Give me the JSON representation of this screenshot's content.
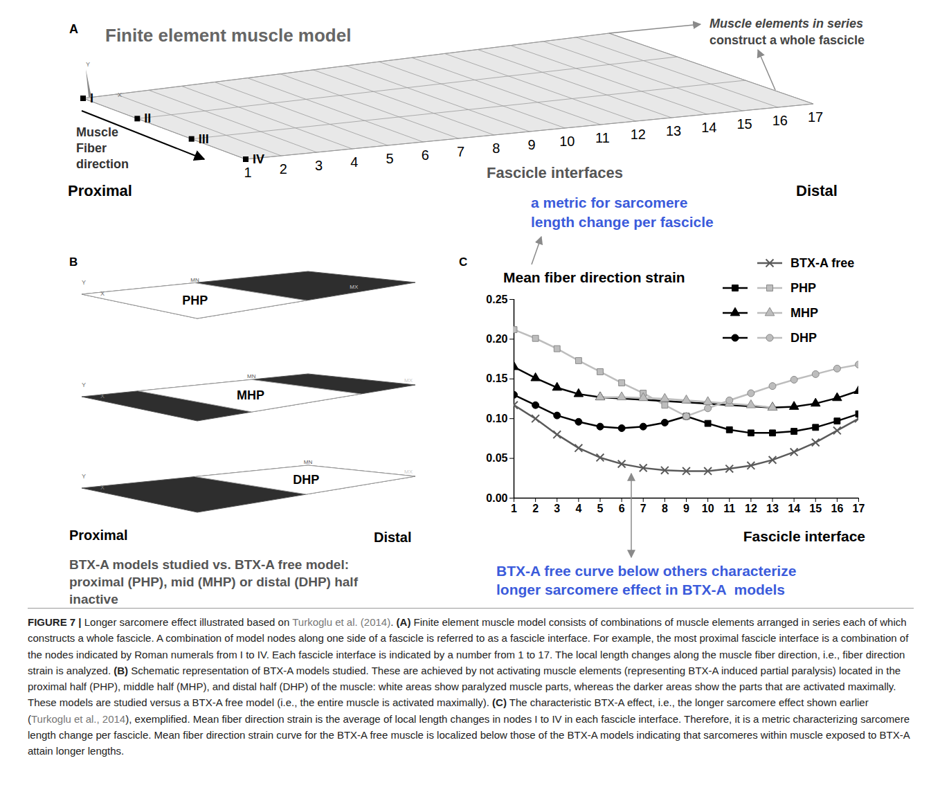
{
  "panel_a": {
    "letter": "A",
    "title": "Finite element muscle model",
    "annotation": [
      "Muscle elements in series",
      "construct a whole fascicle"
    ],
    "axis_marks": [
      "Y",
      "X"
    ],
    "nodes": [
      "I",
      "II",
      "III",
      "IV"
    ],
    "direction_label": "Muscle Fiber direction",
    "interfaces": [
      1,
      2,
      3,
      4,
      5,
      6,
      7,
      8,
      9,
      10,
      11,
      12,
      13,
      14,
      15,
      16,
      17
    ],
    "interfaces_label": "Fascicle interfaces",
    "proximal": "Proximal",
    "distal": "Distal"
  },
  "panel_b": {
    "letter": "B",
    "models": [
      {
        "name": "PHP",
        "inactive_half": "proximal"
      },
      {
        "name": "MHP",
        "inactive_half": "mid"
      },
      {
        "name": "DHP",
        "inactive_half": "distal"
      }
    ],
    "axis_marks": [
      "Y",
      "X"
    ],
    "extrema_marks": [
      "MN",
      "MX"
    ],
    "proximal": "Proximal",
    "distal": "Distal",
    "caption": "BTX-A models studied vs. BTX-A free model: proximal (PHP), mid (MHP) or distal (DHP) half inactive"
  },
  "chart_data": {
    "type": "line",
    "letter": "C",
    "y_label": "Mean fiber direction strain",
    "x_label": "Fascicle interface",
    "x": [
      1,
      2,
      3,
      4,
      5,
      6,
      7,
      8,
      9,
      10,
      11,
      12,
      13,
      14,
      15,
      16,
      17
    ],
    "xlim": [
      1,
      17
    ],
    "xticks": [
      1,
      2,
      3,
      4,
      5,
      6,
      7,
      8,
      9,
      10,
      11,
      12,
      13,
      14,
      15,
      16,
      17
    ],
    "ylim": [
      0,
      0.25
    ],
    "yticks": [
      {
        "value": 0,
        "label": "0.00"
      },
      0.05,
      {
        "value": 0.1,
        "label": "0.10"
      },
      0.15,
      {
        "value": 0.2,
        "label": "0.20"
      },
      0.25
    ],
    "legend": "top-right",
    "series": [
      {
        "name": "BTX-A free",
        "color": "#5a5a5a",
        "marker": "cross",
        "values": [
          0.117,
          0.1,
          0.08,
          0.063,
          0.051,
          0.043,
          0.038,
          0.035,
          0.034,
          0.034,
          0.037,
          0.041,
          0.048,
          0.058,
          0.07,
          0.085,
          0.1
        ]
      },
      {
        "name": "PHP",
        "color": "#000000",
        "marker": "square",
        "values": [
          null,
          null,
          null,
          null,
          null,
          null,
          null,
          null,
          0.103,
          0.094,
          0.086,
          0.082,
          0.082,
          0.084,
          0.089,
          0.097,
          0.106
        ]
      },
      {
        "name": "PHP",
        "color": "#bdbdbd",
        "marker": "square",
        "values": [
          0.212,
          0.201,
          0.188,
          0.173,
          0.159,
          0.145,
          0.132,
          0.117,
          0.103,
          null,
          null,
          null,
          null,
          null,
          null,
          null,
          null
        ]
      },
      {
        "name": "MHP",
        "color": "#000000",
        "marker": "triangle",
        "values": [
          0.165,
          0.151,
          0.139,
          0.131,
          0.127,
          null,
          null,
          null,
          null,
          null,
          null,
          null,
          0.114,
          0.115,
          0.119,
          0.126,
          0.135
        ]
      },
      {
        "name": "MHP",
        "color": "#bdbdbd",
        "marker": "triangle",
        "values": [
          null,
          null,
          null,
          null,
          0.127,
          0.127,
          0.126,
          0.125,
          0.123,
          0.121,
          0.119,
          0.117,
          0.114,
          null,
          null,
          null,
          null
        ]
      },
      {
        "name": "DHP",
        "color": "#000000",
        "marker": "circle",
        "values": [
          0.13,
          0.117,
          0.104,
          0.096,
          0.09,
          0.088,
          0.09,
          0.095,
          0.103,
          null,
          null,
          null,
          null,
          null,
          null,
          null,
          null
        ]
      },
      {
        "name": "DHP",
        "color": "#bdbdbd",
        "marker": "circle",
        "values": [
          null,
          null,
          null,
          null,
          null,
          null,
          null,
          null,
          0.103,
          0.113,
          0.123,
          0.132,
          0.141,
          0.149,
          0.156,
          0.163,
          0.168
        ]
      }
    ],
    "annotations": [
      "a metric for sarcomere length change per fascicle",
      "BTX-A free curve below others characterize longer sarcomere effect in BTX-A  models"
    ]
  },
  "caption": [
    {
      "text": "FIGURE 7 |",
      "style": "bold"
    },
    {
      "text": " Longer sarcomere effect illustrated based on ",
      "style": "plain"
    },
    {
      "text": "Turkoglu et al. (2014)",
      "style": "link"
    },
    {
      "text": ". ",
      "style": "plain"
    },
    {
      "text": "(A)",
      "style": "bold"
    },
    {
      "text": " Finite element muscle model consists of combinations of muscle elements arranged in series each of which constructs a whole fascicle. A combination of model nodes along one side of a fascicle is referred to as a fascicle interface. For example, the most proximal fascicle interface is a combination of the nodes indicated by Roman numerals from I to IV. Each fascicle interface is indicated by a number from 1 to 17. The local length changes along the muscle fiber direction, i.e., fiber direction strain is analyzed. ",
      "style": "plain"
    },
    {
      "text": "(B)",
      "style": "bold"
    },
    {
      "text": " Schematic representation of BTX-A models studied. These are achieved by not activating muscle elements (representing BTX-A induced partial paralysis) located in the proximal half (PHP), middle half (MHP), and distal half (DHP) of the muscle: white areas show paralyzed muscle parts, whereas the darker areas show the parts that are activated maximally. These models are studied versus a BTX-A free model (i.e., the entire muscle is activated maximally). ",
      "style": "plain"
    },
    {
      "text": "(C)",
      "style": "bold"
    },
    {
      "text": " The characteristic BTX-A effect, i.e., the longer sarcomere effect shown earlier (",
      "style": "plain"
    },
    {
      "text": "Turkoglu et al., 2014",
      "style": "link"
    },
    {
      "text": "), exemplified. Mean fiber direction strain is the average of local length changes in nodes I to IV in each fascicle interface. Therefore, it is a metric characterizing sarcomere length change per fascicle. Mean fiber direction strain curve for the BTX-A free muscle is localized below those of the BTX-A models indicating that sarcomeres within muscle exposed to BTX-A attain longer lengths.",
      "style": "plain"
    }
  ]
}
